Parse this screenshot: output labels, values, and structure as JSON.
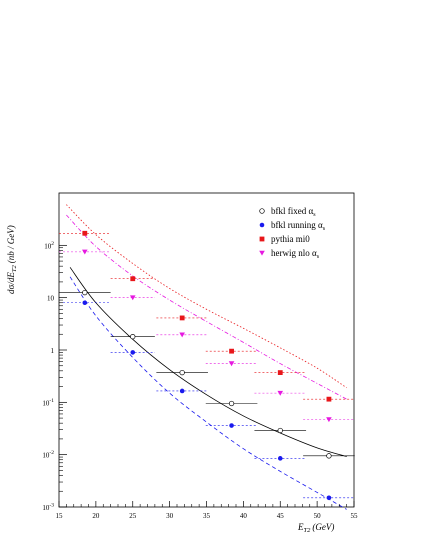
{
  "chart_data": {
    "type": "scatter",
    "title": "",
    "xlabel": "E_T2 (GeV)",
    "ylabel": "dσ/dE_T2 (nb / GeV)",
    "xlim": [
      15,
      55
    ],
    "ylim": [
      0.001,
      1000
    ],
    "y_scale": "log",
    "grid": false,
    "legend_position": "top-right",
    "x_ticks": [
      15,
      20,
      25,
      30,
      35,
      40,
      45,
      50,
      55
    ],
    "y_ticks": [
      {
        "value": 0.001,
        "mantissa": "10",
        "exponent": "-3"
      },
      {
        "value": 0.01,
        "mantissa": "10",
        "exponent": "-2"
      },
      {
        "value": 0.1,
        "mantissa": "10",
        "exponent": "-1"
      },
      {
        "value": 1,
        "mantissa": "1",
        "exponent": ""
      },
      {
        "value": 10,
        "mantissa": "10",
        "exponent": ""
      },
      {
        "value": 100,
        "mantissa": "10",
        "exponent": "2"
      }
    ],
    "series": [
      {
        "name": "bfkl fixed α_s",
        "label_main": "bfkl fixed ",
        "label_alpha": "α",
        "label_sub": "s",
        "marker": "open-circle",
        "color": "#000000",
        "line_dash": "",
        "points": [
          {
            "x": 18.5,
            "y": 12.5,
            "x_err": 3.5
          },
          {
            "x": 25,
            "y": 1.8,
            "x_err": 3
          },
          {
            "x": 31.7,
            "y": 0.37,
            "x_err": 3.5
          },
          {
            "x": 38.4,
            "y": 0.095,
            "x_err": 3.5
          },
          {
            "x": 45,
            "y": 0.029,
            "x_err": 3.5
          },
          {
            "x": 51.6,
            "y": 0.0095,
            "x_err": 3.5
          }
        ],
        "curve": [
          [
            16.5,
            38
          ],
          [
            20,
            8
          ],
          [
            25,
            1.6
          ],
          [
            30,
            0.42
          ],
          [
            35,
            0.14
          ],
          [
            40,
            0.055
          ],
          [
            45,
            0.026
          ],
          [
            50,
            0.0135
          ],
          [
            54,
            0.0092
          ]
        ]
      },
      {
        "name": "bfkl running α_s",
        "label_main": "bfkl running ",
        "label_alpha": "α",
        "label_sub": "s",
        "marker": "filled-circle",
        "color": "#1a1aee",
        "line_dash": "4,3",
        "points": [
          {
            "x": 18.5,
            "y": 8,
            "x_err": 3.5
          },
          {
            "x": 25,
            "y": 0.9,
            "x_err": 3
          },
          {
            "x": 31.7,
            "y": 0.165,
            "x_err": 3.5
          },
          {
            "x": 38.4,
            "y": 0.036,
            "x_err": 3.5
          },
          {
            "x": 45,
            "y": 0.0085,
            "x_err": 3.5
          },
          {
            "x": 51.6,
            "y": 0.0015,
            "x_err": 3.5
          }
        ],
        "curve": [
          [
            16.5,
            25
          ],
          [
            20,
            4.5
          ],
          [
            25,
            0.72
          ],
          [
            30,
            0.15
          ],
          [
            35,
            0.042
          ],
          [
            40,
            0.013
          ],
          [
            45,
            0.0048
          ],
          [
            50,
            0.0019
          ],
          [
            54,
            0.0009
          ]
        ]
      },
      {
        "name": "pythia mi0",
        "label_main": "pythia mi0",
        "label_alpha": "",
        "label_sub": "",
        "marker": "filled-square",
        "color": "#e8161a",
        "line_dash": "1.5,2",
        "points": [
          {
            "x": 18.5,
            "y": 170,
            "x_err": 3.5
          },
          {
            "x": 25,
            "y": 23,
            "x_err": 3
          },
          {
            "x": 31.7,
            "y": 4.1,
            "x_err": 3.5
          },
          {
            "x": 38.4,
            "y": 0.95,
            "x_err": 3.5
          },
          {
            "x": 45,
            "y": 0.37,
            "x_err": 3.5
          },
          {
            "x": 51.6,
            "y": 0.115,
            "x_err": 3.5
          }
        ],
        "curve": [
          [
            16,
            600
          ],
          [
            20,
            160
          ],
          [
            25,
            45
          ],
          [
            30,
            15
          ],
          [
            35,
            6
          ],
          [
            40,
            2.6
          ],
          [
            45,
            1.1
          ],
          [
            50,
            0.45
          ],
          [
            54,
            0.19
          ]
        ]
      },
      {
        "name": "herwig nlo α_s",
        "label_main": "herwig nlo ",
        "label_alpha": "α",
        "label_sub": "s",
        "marker": "filled-triangle-down",
        "color": "#e619e0",
        "line_dash": "4,2,1,2",
        "points": [
          {
            "x": 18.5,
            "y": 75,
            "x_err": 3.5
          },
          {
            "x": 25,
            "y": 10,
            "x_err": 3
          },
          {
            "x": 31.7,
            "y": 1.95,
            "x_err": 3.5
          },
          {
            "x": 38.4,
            "y": 0.55,
            "x_err": 3.5
          },
          {
            "x": 45,
            "y": 0.15,
            "x_err": 3.5
          },
          {
            "x": 51.6,
            "y": 0.047,
            "x_err": 3.5
          }
        ],
        "curve": [
          [
            16,
            380
          ],
          [
            20,
            95
          ],
          [
            25,
            26
          ],
          [
            30,
            9
          ],
          [
            35,
            3.5
          ],
          [
            40,
            1.4
          ],
          [
            45,
            0.55
          ],
          [
            50,
            0.23
          ],
          [
            54,
            0.115
          ]
        ]
      }
    ]
  }
}
